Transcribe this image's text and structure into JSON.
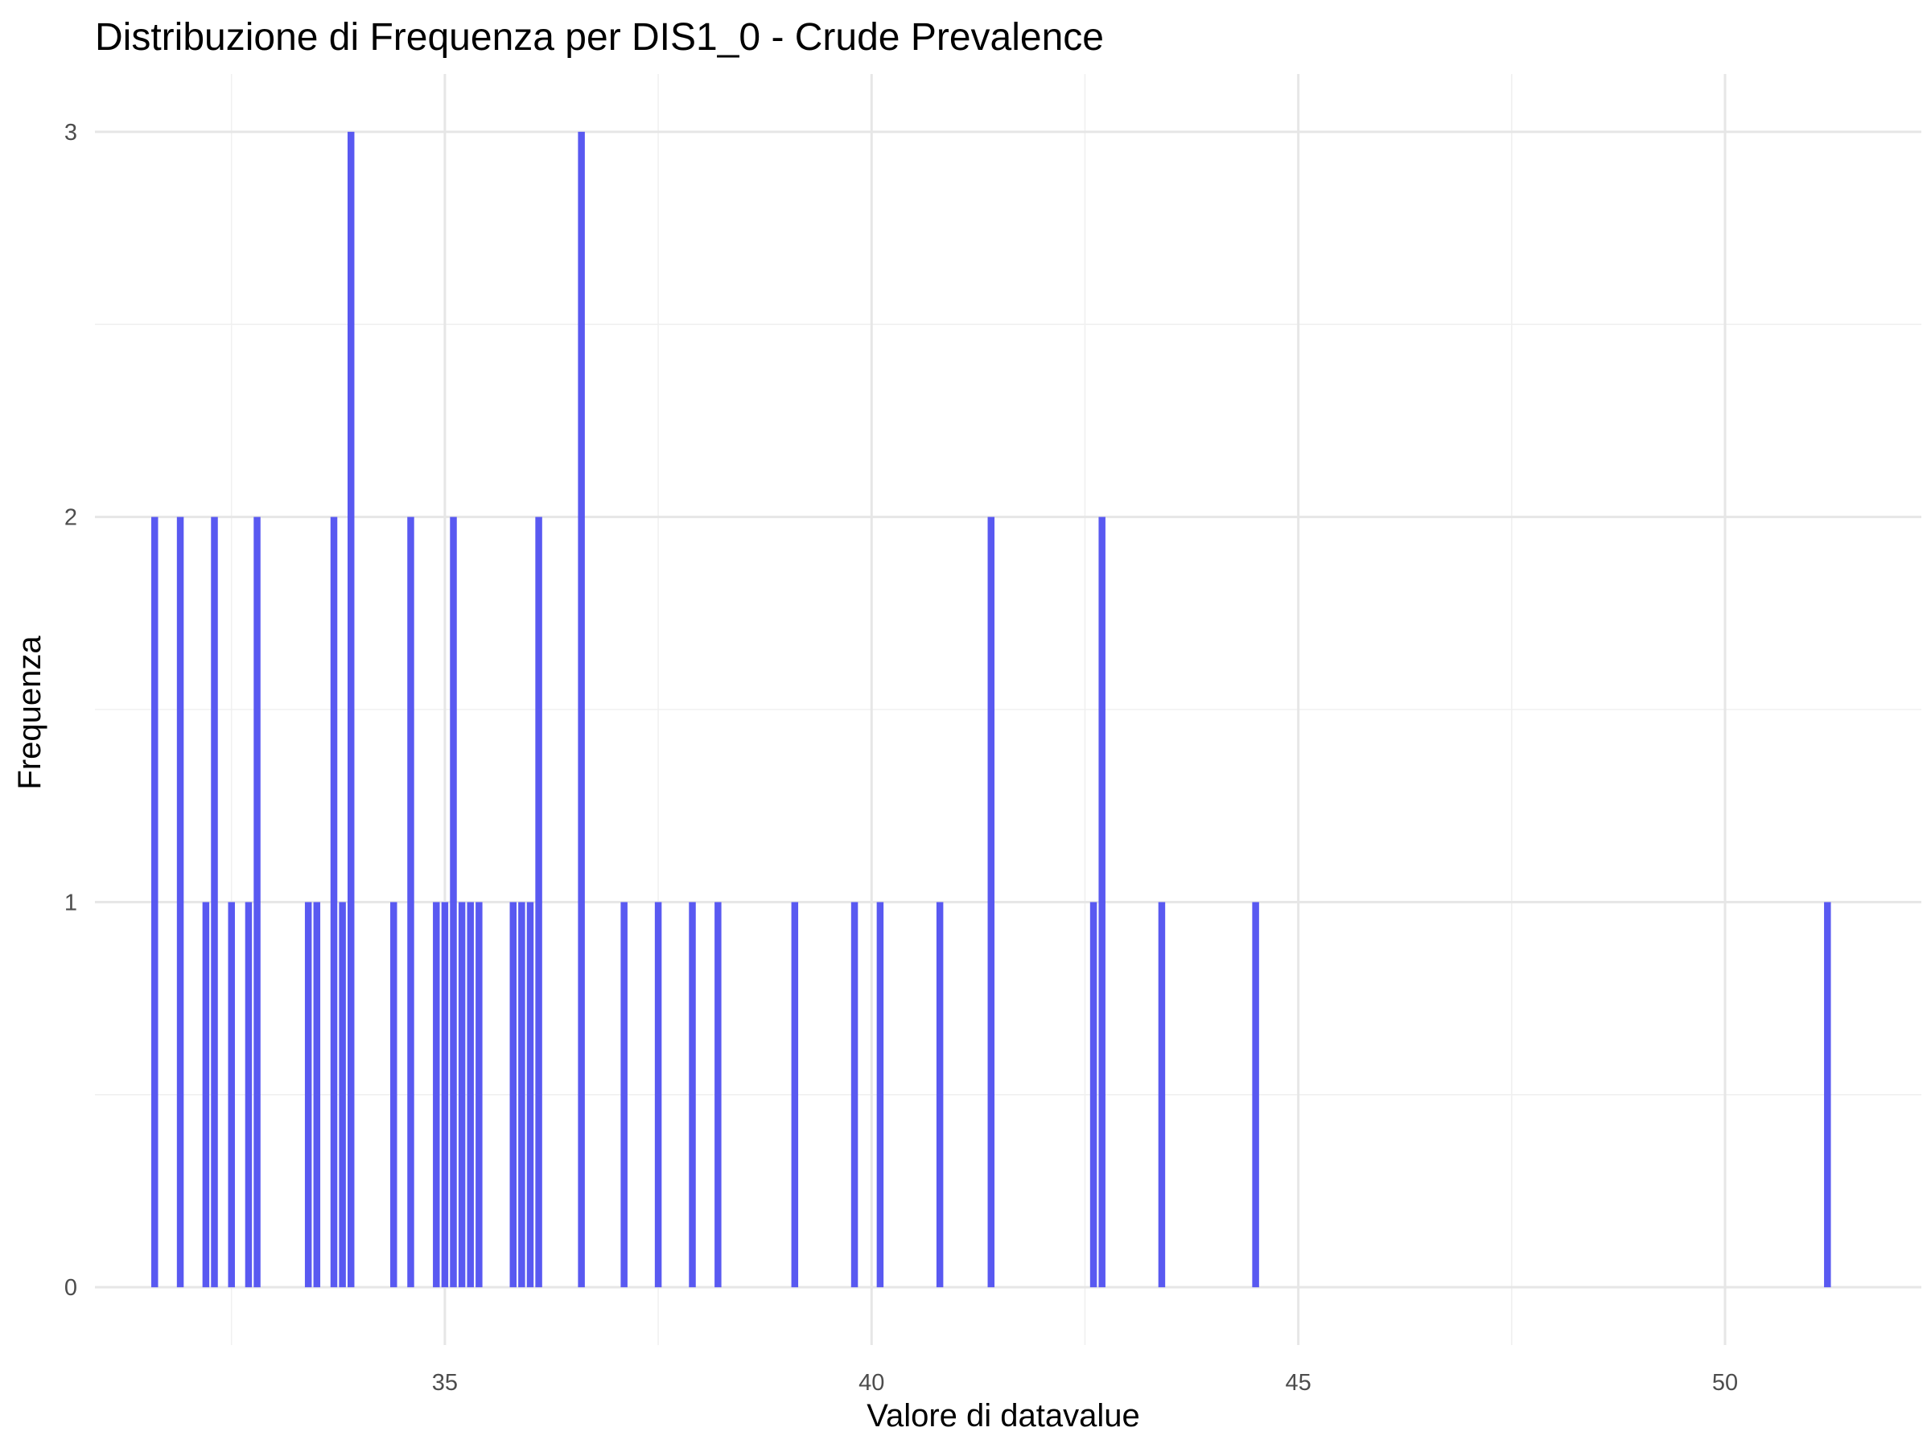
{
  "chart_data": {
    "type": "bar",
    "title": "Distribuzione di Frequenza per DIS1_0 - Crude Prevalence",
    "xlabel": "Valore di datavalue",
    "ylabel": "Frequenza",
    "xlim": [
      30.9,
      52.3
    ],
    "ylim": [
      -0.15,
      3.15
    ],
    "x_ticks": [
      35,
      40,
      45,
      50
    ],
    "y_ticks": [
      0,
      1,
      2,
      3
    ],
    "grid": true,
    "bar_color": "#5050f0",
    "bar_width": 0.08,
    "bars": [
      {
        "x": 31.6,
        "count": 2
      },
      {
        "x": 31.9,
        "count": 2
      },
      {
        "x": 32.2,
        "count": 1
      },
      {
        "x": 32.3,
        "count": 2
      },
      {
        "x": 32.5,
        "count": 1
      },
      {
        "x": 32.7,
        "count": 1
      },
      {
        "x": 32.8,
        "count": 2
      },
      {
        "x": 33.4,
        "count": 1
      },
      {
        "x": 33.5,
        "count": 1
      },
      {
        "x": 33.7,
        "count": 2
      },
      {
        "x": 33.8,
        "count": 1
      },
      {
        "x": 33.9,
        "count": 3
      },
      {
        "x": 34.4,
        "count": 1
      },
      {
        "x": 34.6,
        "count": 2
      },
      {
        "x": 34.9,
        "count": 1
      },
      {
        "x": 35.0,
        "count": 1
      },
      {
        "x": 35.1,
        "count": 2
      },
      {
        "x": 35.2,
        "count": 1
      },
      {
        "x": 35.3,
        "count": 1
      },
      {
        "x": 35.4,
        "count": 1
      },
      {
        "x": 35.8,
        "count": 1
      },
      {
        "x": 35.9,
        "count": 1
      },
      {
        "x": 36.0,
        "count": 1
      },
      {
        "x": 36.1,
        "count": 2
      },
      {
        "x": 36.6,
        "count": 3
      },
      {
        "x": 37.1,
        "count": 1
      },
      {
        "x": 37.5,
        "count": 1
      },
      {
        "x": 37.9,
        "count": 1
      },
      {
        "x": 38.2,
        "count": 1
      },
      {
        "x": 39.1,
        "count": 1
      },
      {
        "x": 39.8,
        "count": 1
      },
      {
        "x": 40.1,
        "count": 1
      },
      {
        "x": 40.8,
        "count": 1
      },
      {
        "x": 41.4,
        "count": 2
      },
      {
        "x": 42.6,
        "count": 1
      },
      {
        "x": 42.7,
        "count": 2
      },
      {
        "x": 43.4,
        "count": 1
      },
      {
        "x": 44.5,
        "count": 1
      },
      {
        "x": 51.2,
        "count": 1
      }
    ]
  }
}
